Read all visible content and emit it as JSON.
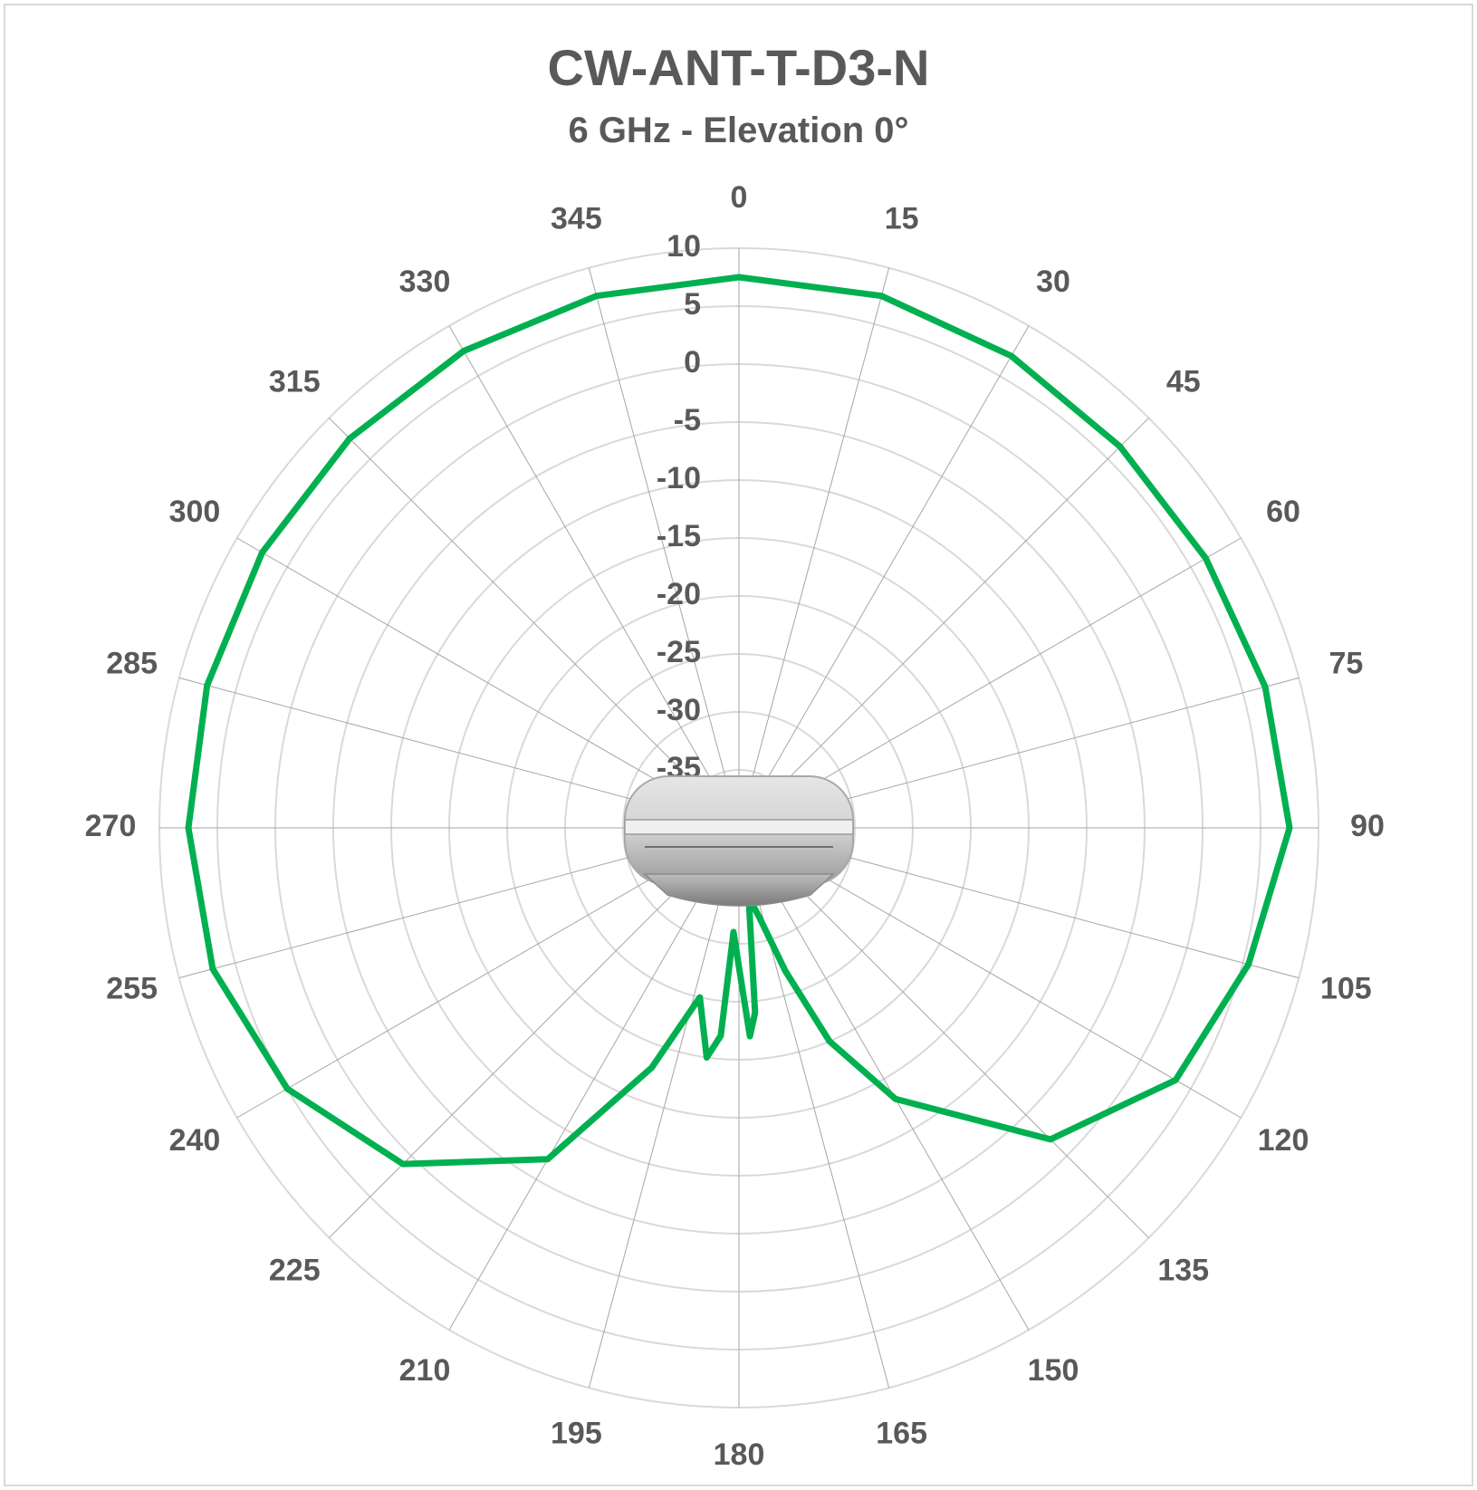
{
  "chart_data": {
    "type": "polar-line",
    "title": "CW-ANT-T-D3-N",
    "subtitle": "6 GHz - Elevation 0°",
    "angle_ticks": [
      "0",
      "15",
      "30",
      "45",
      "60",
      "75",
      "90",
      "105",
      "120",
      "135",
      "150",
      "165",
      "180",
      "195",
      "210",
      "225",
      "240",
      "255",
      "270",
      "285",
      "300",
      "315",
      "330",
      "345"
    ],
    "radial_ticks": [
      "10",
      "5",
      "0",
      "-5",
      "-10",
      "-15",
      "-20",
      "-25",
      "-30",
      "-35"
    ],
    "r_range": [
      -40,
      10
    ],
    "grid": true,
    "angle_step_deg": 15,
    "colors": {
      "series": "#00b050",
      "grid": "#d9d9d9",
      "spokes": "#a6a6a6",
      "text": "#595959"
    },
    "series": [
      {
        "theta": [
          0,
          15,
          30,
          45,
          60,
          75,
          90,
          105,
          120,
          135,
          150,
          157,
          162,
          167,
          172,
          175,
          177,
          180,
          183,
          185,
          188,
          193,
          200,
          210,
          225,
          240,
          255,
          270,
          285,
          300,
          315,
          330,
          345,
          360
        ],
        "r": [
          7.5,
          7.5,
          7,
          6.5,
          6.5,
          7,
          7.5,
          5.5,
          3.5,
          -2,
          -13,
          -20,
          -27,
          -32,
          -34,
          -24,
          -22,
          -28,
          -31,
          -22,
          -20,
          -25,
          -18,
          -7,
          1,
          5,
          7,
          7.5,
          7.5,
          7.5,
          7.5,
          7.5,
          7.5,
          7.5
        ]
      }
    ]
  },
  "device_image": {
    "icon": "antenna-device-icon"
  }
}
